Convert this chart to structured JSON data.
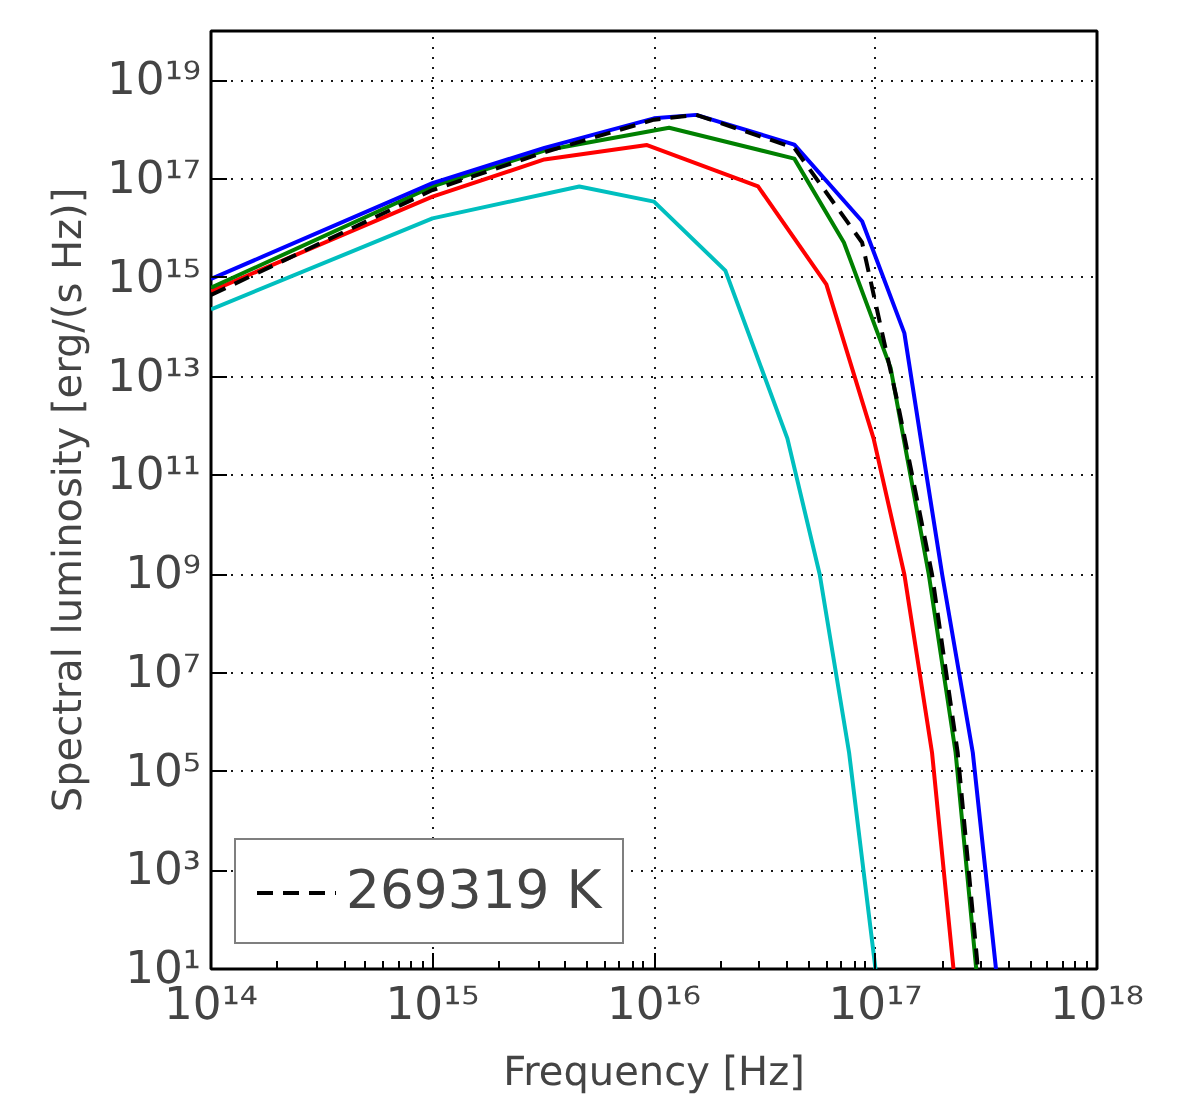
{
  "chart_data": {
    "type": "line",
    "xlabel": "Frequency [Hz]",
    "ylabel": "Spectral luminosity [erg/(s Hz)]",
    "log": "xy",
    "grid": true,
    "legend": "bottom left",
    "xlim": [
      100000000000000.0,
      1e+18
    ],
    "ylim": [
      10,
      1e+20
    ],
    "xticks": [
      {
        "value": 100000000000000.0,
        "label": "10¹⁴"
      },
      {
        "value": 1000000000000000.0,
        "label": "10¹⁵"
      },
      {
        "value": 1e+16,
        "label": "10¹⁶"
      },
      {
        "value": 1e+17,
        "label": "10¹⁷"
      },
      {
        "value": 1e+18,
        "label": "10¹⁸"
      }
    ],
    "yticks": [
      {
        "value": 10,
        "label": "10¹"
      },
      {
        "value": 1000.0,
        "label": "10³"
      },
      {
        "value": 100000.0,
        "label": "10⁵"
      },
      {
        "value": 10000000.0,
        "label": "10⁷"
      },
      {
        "value": 1000000000.0,
        "label": "10⁹"
      },
      {
        "value": 100000000000.0,
        "label": "10¹¹"
      },
      {
        "value": 10000000000000.0,
        "label": "10¹³"
      },
      {
        "value": 1000000000000000.0,
        "label": "10¹⁵"
      },
      {
        "value": 1e+17,
        "label": "10¹⁷"
      },
      {
        "value": 1e+19,
        "label": "10¹⁹"
      }
    ],
    "series": [
      {
        "color": "#00bfbf",
        "x": [
          100000000000000.0,
          1000000000000000.0,
          4600000000000000.0,
          1e+16,
          2.1e+16,
          4e+16,
          5.6e+16,
          7.6e+16,
          1e+17
        ],
        "values": [
          230000000000000.0,
          1.6e+16,
          7.1e+16,
          3.5e+16,
          1400000000000000.0,
          560000000000.0,
          980000000.0,
          240000.0,
          10
        ]
      },
      {
        "color": "#ff0000",
        "x": [
          100000000000000.0,
          1000000000000000.0,
          3200000000000000.0,
          9300000000000000.0,
          2.95e+16,
          6e+16,
          9.8e+16,
          1.35e+17,
          1.8e+17,
          2.25e+17
        ],
        "values": [
          540000000000000.0,
          4.4e+16,
          2.5e+17,
          4.9e+17,
          7.1e+16,
          740000000000000.0,
          560000000000.0,
          980000000.0,
          240000.0,
          10
        ]
      },
      {
        "color": "#008000",
        "x": [
          100000000000000.0,
          1000000000000000.0,
          3200000000000000.0,
          1.17e+16,
          4.3e+16,
          7.2e+16,
          1.17e+17,
          1.74e+17,
          2.3e+17,
          2.85e+17
        ],
        "values": [
          630000000000000.0,
          7.1e+16,
          3.8e+17,
          1.1e+18,
          2.6e+17,
          5200000000000000.0,
          15000000000000.0,
          980000000.0,
          240000.0,
          10
        ]
      },
      {
        "color": "#0000ff",
        "x": [
          100000000000000.0,
          1000000000000000.0,
          3200000000000000.0,
          1e+16,
          1.55e+16,
          4.3e+16,
          8.7e+16,
          1.35e+17,
          1.6e+17,
          2e+17,
          2.75e+17,
          3.5e+17
        ],
        "values": [
          950000000000000.0,
          8.3e+16,
          4.3e+17,
          1.7e+18,
          2e+18,
          5e+17,
          1.4e+16,
          76000000000000.0,
          560000000000.0,
          980000000.0,
          240000.0,
          10
        ]
      },
      {
        "name": "269319 K",
        "color": "#000000",
        "line_style": "dashed",
        "x": [
          100000000000000.0,
          1000000000000000.0,
          3200000000000000.0,
          1e+16,
          1.55e+16,
          4.3e+16,
          8.7e+16,
          1.26e+17,
          1.8e+17,
          2.35e+17,
          2.9e+17
        ],
        "values": [
          450000000000000.0,
          6e+16,
          3.5e+17,
          1.6e+18,
          2e+18,
          4.3e+17,
          5200000000000000.0,
          2900000000000.0,
          980000000.0,
          240000.0,
          10
        ]
      }
    ]
  }
}
